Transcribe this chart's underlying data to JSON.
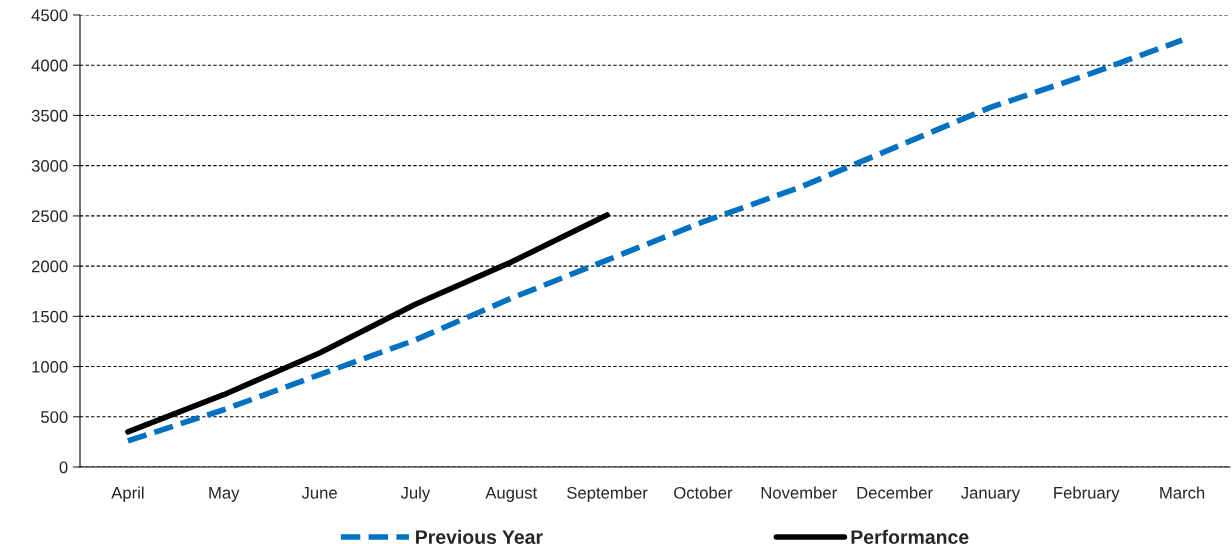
{
  "chart_data": {
    "type": "line",
    "categories": [
      "April",
      "May",
      "June",
      "July",
      "August",
      "September",
      "October",
      "November",
      "December",
      "January",
      "February",
      "March"
    ],
    "series": [
      {
        "name": "Previous Year",
        "color": "#0070c0",
        "line_style": "dashed",
        "values": [
          260,
          570,
          920,
          1265,
          1680,
          2060,
          2440,
          2780,
          3180,
          3580,
          3900,
          4250
        ]
      },
      {
        "name": "Performance",
        "color": "#000000",
        "line_style": "solid",
        "values": [
          350,
          720,
          1135,
          1620,
          2040,
          2510,
          null,
          null,
          null,
          null,
          null,
          null
        ]
      }
    ],
    "ylim": [
      0,
      4500
    ],
    "yticks": [
      0,
      500,
      1000,
      1500,
      2000,
      2500,
      3000,
      3500,
      4000,
      4500
    ],
    "grid": "y",
    "legend": "bottom"
  }
}
